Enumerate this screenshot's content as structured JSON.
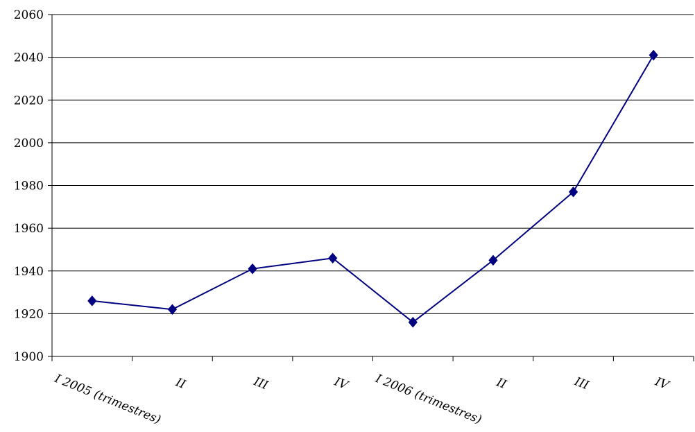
{
  "chart_data": {
    "type": "line",
    "categories": [
      "I 2005 (trimestres)",
      "II",
      "III",
      "IV",
      "I 2006 (trimestres)",
      "II",
      "III",
      "IV"
    ],
    "series": [
      {
        "values": [
          1926,
          1922,
          1941,
          1946,
          1916,
          1945,
          1977,
          2041
        ],
        "color": "#000080",
        "marker": "diamond"
      }
    ],
    "ylim": [
      1900,
      2060
    ],
    "yticks": [
      1900,
      1920,
      1940,
      1960,
      1980,
      2000,
      2020,
      2040,
      2060
    ],
    "grid": true,
    "legend": "none",
    "title": "",
    "xlabel": "",
    "ylabel": ""
  }
}
